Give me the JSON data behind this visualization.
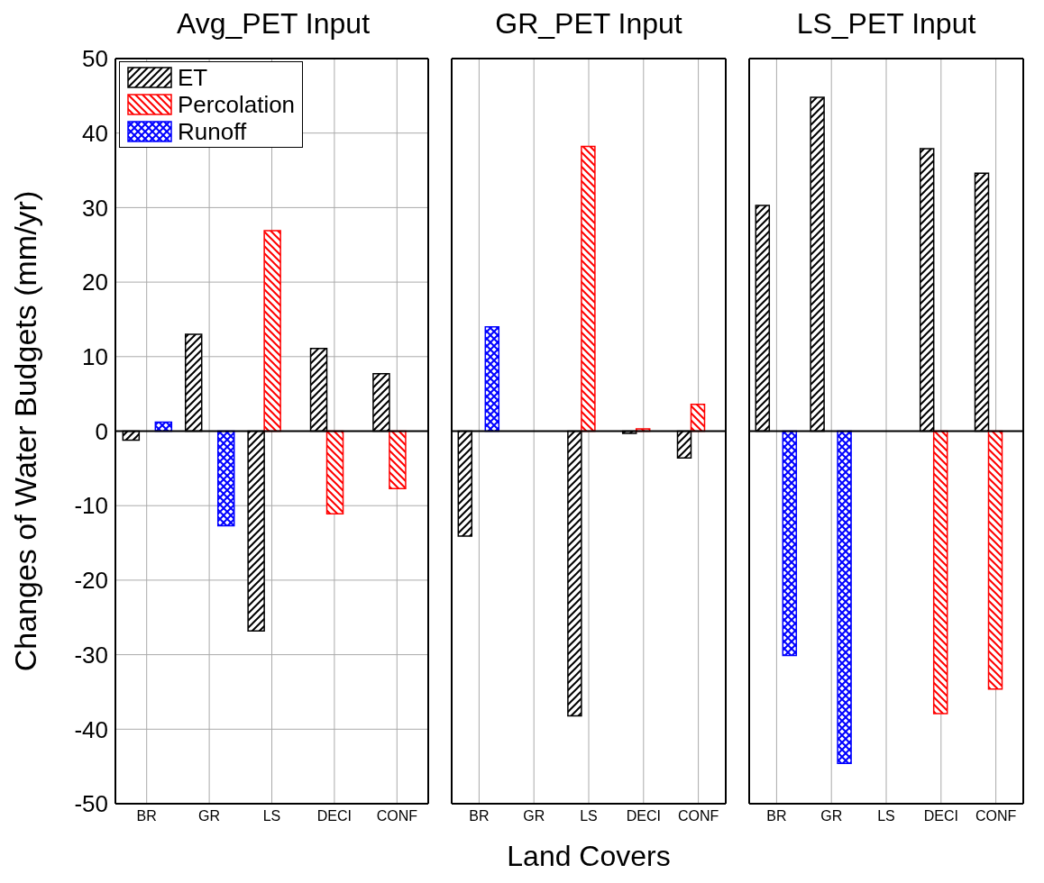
{
  "chart_data": [
    {
      "type": "bar",
      "title": "Avg_PET Input",
      "ylabel": "Changes of Water Budgets (mm/yr)",
      "categories": [
        "BR",
        "GR",
        "LS",
        "DECI",
        "CONF"
      ],
      "ylim": [
        -50,
        50
      ],
      "yticks": [
        -50,
        -40,
        -30,
        -20,
        -10,
        0,
        10,
        20,
        30,
        40,
        50
      ],
      "grid": true,
      "legend": "top left",
      "series": [
        {
          "name": "ET",
          "color": "#000000",
          "values": [
            -1.2,
            13.0,
            -26.8,
            11.1,
            7.7
          ]
        },
        {
          "name": "Percolation",
          "color": "#ff0000",
          "values": [
            0,
            0,
            26.9,
            -11.1,
            -7.7
          ]
        },
        {
          "name": "Runoff",
          "color": "#0000ff",
          "values": [
            1.2,
            -12.7,
            0,
            0,
            0
          ]
        }
      ],
      "ref_lines": [
        {
          "axis": "y",
          "value": 0,
          "color": "#000000"
        }
      ]
    },
    {
      "type": "bar",
      "title": "GR_PET Input",
      "xlabel": "Land Covers",
      "categories": [
        "BR",
        "GR",
        "LS",
        "DECI",
        "CONF"
      ],
      "ylim": [
        -50,
        50
      ],
      "yticks": [
        -50,
        -40,
        -30,
        -20,
        -10,
        0,
        10,
        20,
        30,
        40,
        50
      ],
      "grid": true,
      "tick_labels": "x",
      "series": [
        {
          "color": "#000000",
          "values": [
            -14.1,
            0,
            -38.2,
            -0.3,
            -3.6
          ]
        },
        {
          "color": "#ff0000",
          "values": [
            0,
            0,
            38.2,
            0.3,
            3.6
          ]
        },
        {
          "color": "#0000ff",
          "values": [
            14.0,
            0,
            0,
            0,
            0
          ]
        }
      ],
      "ref_lines": [
        {
          "axis": "y",
          "value": 0,
          "color": "#000000"
        }
      ]
    },
    {
      "type": "bar",
      "title": "LS_PET Input",
      "categories": [
        "BR",
        "GR",
        "LS",
        "DECI",
        "CONF"
      ],
      "ylim": [
        -50,
        50
      ],
      "yticks": [
        -50,
        -40,
        -30,
        -20,
        -10,
        0,
        10,
        20,
        30,
        40,
        50
      ],
      "grid": true,
      "tick_labels": "x",
      "series": [
        {
          "color": "#000000",
          "values": [
            30.3,
            44.8,
            0,
            37.9,
            34.6
          ]
        },
        {
          "color": "#ff0000",
          "values": [
            0,
            0,
            0,
            -37.9,
            -34.6
          ]
        },
        {
          "color": "#0000ff",
          "values": [
            -30.1,
            -44.6,
            0,
            0,
            0
          ]
        }
      ],
      "ref_lines": [
        {
          "axis": "y",
          "value": 0,
          "color": "#000000"
        }
      ]
    }
  ]
}
